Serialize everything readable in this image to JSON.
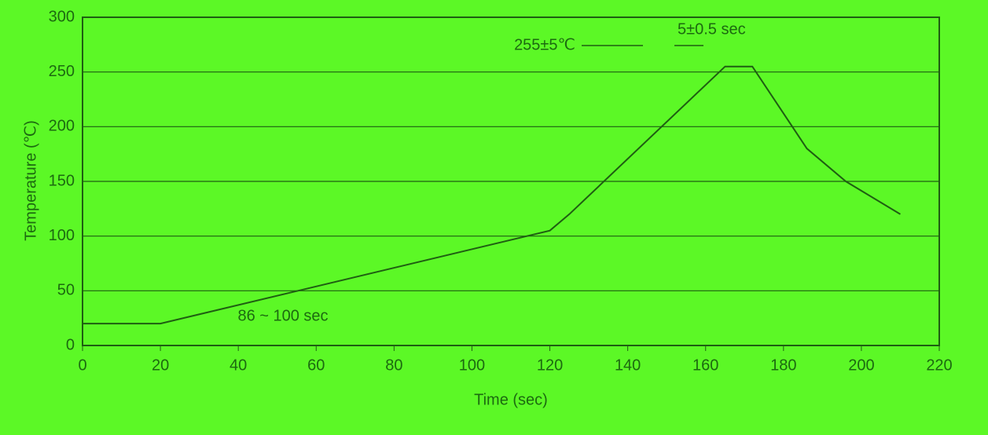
{
  "chart_data": {
    "type": "line",
    "x": [
      0,
      20,
      120,
      125,
      165,
      172,
      186,
      196,
      210
    ],
    "values": [
      20,
      20,
      105,
      120,
      255,
      255,
      180,
      150,
      120
    ],
    "color": "#1f5e12",
    "xlim": [
      0,
      220
    ],
    "xticks": [
      0,
      20,
      40,
      60,
      80,
      100,
      120,
      140,
      160,
      180,
      200,
      220
    ],
    "ylim": [
      0,
      300
    ],
    "yticks": [
      0,
      50,
      100,
      150,
      200,
      250,
      300
    ],
    "grid": true,
    "xlabel": "Time (sec)",
    "ylabel": "Temperature (℃)",
    "annotations": [
      "255±5℃",
      "5±0.5 sec",
      "86 ~ 100 sec"
    ]
  }
}
